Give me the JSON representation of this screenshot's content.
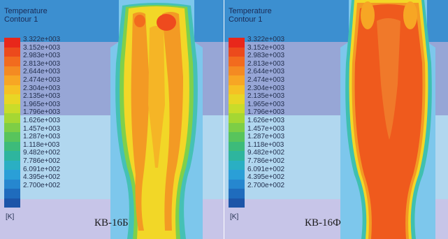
{
  "legend": {
    "title_line1": "Temperature",
    "title_line2": "Contour 1",
    "unit": "[K]",
    "values": [
      "3.322e+003",
      "3.152e+003",
      "2.983e+003",
      "2.813e+003",
      "2.644e+003",
      "2.474e+003",
      "2.304e+003",
      "2.135e+003",
      "1.965e+003",
      "1.796e+003",
      "1.626e+003",
      "1.457e+003",
      "1.287e+003",
      "1.118e+003",
      "9.482e+002",
      "7.786e+002",
      "6.091e+002",
      "4.395e+002",
      "2.700e+002"
    ],
    "colors": [
      "#e8271b",
      "#ec4a1c",
      "#f26b1e",
      "#f48a22",
      "#f7a624",
      "#f5c124",
      "#e8d625",
      "#c9dc2a",
      "#a5d733",
      "#7dce46",
      "#58c45c",
      "#3dbb7a",
      "#2eb59e",
      "#2aafc3",
      "#2a9fd7",
      "#2687cf",
      "#1f6cbd",
      "#1c55a8"
    ],
    "range_min": 270.0,
    "range_max": 3322.0
  },
  "panels": [
    {
      "caption": "КВ-16Б"
    },
    {
      "caption": "КВ-16Ф"
    }
  ]
}
